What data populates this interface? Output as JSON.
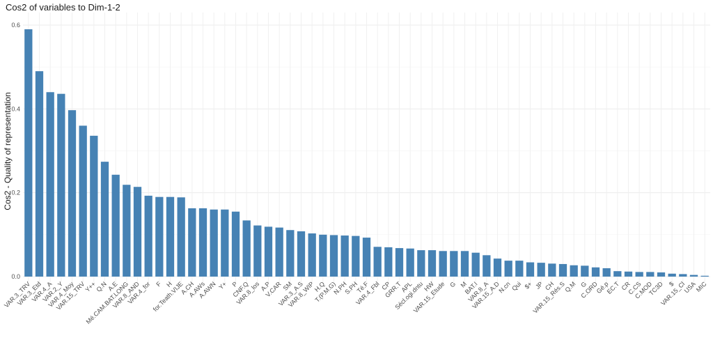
{
  "chart_data": {
    "type": "bar",
    "title": "Cos2 of variables to Dim-1-2",
    "xlabel": "",
    "ylabel": "Cos2 - Quality of representation",
    "ylim": [
      0,
      0.6
    ],
    "yticks": [
      "0.0",
      "0.2",
      "0.4",
      "0.6"
    ],
    "grid": true,
    "bar_color": "#4682B4",
    "categories": [
      "VAR.3_TRV",
      "VAR.3_Etd",
      "VAR.4_A",
      "VAR.2_Y",
      "VAR.4_Moy",
      "VAR.15_TRV",
      "Y++",
      "Q.N",
      "A.E",
      "Mé.CAM.BAT.LONG",
      "VAR.8_AND",
      "VAR.4_for",
      "F",
      "H",
      "for.Teath.VIJE",
      "A.CH",
      "A.AWs",
      "A.AWN",
      "Y+",
      "P",
      "CNF.Q",
      "VAR.8_los",
      "A.P",
      "V.CAR",
      "SM",
      "VAR.3_A.S",
      "VAR.8_WIP",
      "H.Q",
      "T.(P.M.G)",
      "N.PH",
      "S.PH",
      "Té.F",
      "VAR.4_Fbl",
      "CP",
      "GRR.T",
      "APL",
      "Sécl.ogi.dntu",
      "HW",
      "VAR.15_Etude",
      "G",
      "M",
      "BAT.I",
      "VAR.8_A",
      "VAR.15_A.D",
      "N.cn",
      "Qui",
      "$+",
      "JP",
      "CH",
      "VAR.15_Rés.S",
      "Q.M",
      "G",
      "C.ORD",
      "Gé.p",
      "EC.T",
      "CR",
      "C.CS",
      "C.MOD",
      "TC3D",
      "$",
      "VAR.15_Cl",
      "USA",
      "MIC"
    ],
    "values": [
      0.59,
      0.49,
      0.44,
      0.436,
      0.397,
      0.36,
      0.336,
      0.274,
      0.243,
      0.219,
      0.214,
      0.193,
      0.19,
      0.19,
      0.189,
      0.163,
      0.163,
      0.16,
      0.16,
      0.155,
      0.134,
      0.122,
      0.119,
      0.117,
      0.111,
      0.108,
      0.103,
      0.1,
      0.099,
      0.098,
      0.097,
      0.093,
      0.071,
      0.07,
      0.068,
      0.067,
      0.063,
      0.063,
      0.061,
      0.061,
      0.061,
      0.057,
      0.051,
      0.043,
      0.038,
      0.038,
      0.034,
      0.033,
      0.031,
      0.03,
      0.027,
      0.026,
      0.022,
      0.02,
      0.013,
      0.012,
      0.011,
      0.011,
      0.01,
      0.007,
      0.006,
      0.004,
      0.002
    ]
  }
}
